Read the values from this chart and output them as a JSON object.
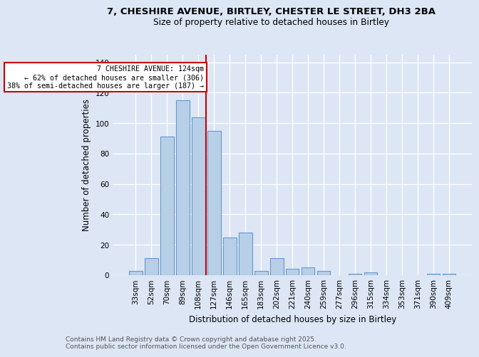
{
  "title1": "7, CHESHIRE AVENUE, BIRTLEY, CHESTER LE STREET, DH3 2BA",
  "title2": "Size of property relative to detached houses in Birtley",
  "xlabel": "Distribution of detached houses by size in Birtley",
  "ylabel": "Number of detached properties",
  "categories": [
    "33sqm",
    "52sqm",
    "70sqm",
    "89sqm",
    "108sqm",
    "127sqm",
    "146sqm",
    "165sqm",
    "183sqm",
    "202sqm",
    "221sqm",
    "240sqm",
    "259sqm",
    "277sqm",
    "296sqm",
    "315sqm",
    "334sqm",
    "353sqm",
    "371sqm",
    "390sqm",
    "409sqm"
  ],
  "values": [
    3,
    11,
    91,
    115,
    104,
    95,
    25,
    28,
    3,
    11,
    4,
    5,
    3,
    0,
    1,
    2,
    0,
    0,
    0,
    1,
    1
  ],
  "bar_color": "#b8cfe8",
  "bar_edge_color": "#6699cc",
  "background_color": "#dce6f5",
  "grid_color": "#ffffff",
  "ref_line_color": "#cc0000",
  "annotation_box_facecolor": "#ffffff",
  "annotation_box_edgecolor": "#cc0000",
  "ref_line_label": "7 CHESHIRE AVENUE: 124sqm",
  "annotation_line2": "← 62% of detached houses are smaller (306)",
  "annotation_line3": "38% of semi-detached houses are larger (187) →",
  "ylim": [
    0,
    145
  ],
  "yticks": [
    0,
    20,
    40,
    60,
    80,
    100,
    120,
    140
  ],
  "footer1": "Contains HM Land Registry data © Crown copyright and database right 2025.",
  "footer2": "Contains public sector information licensed under the Open Government Licence v3.0."
}
